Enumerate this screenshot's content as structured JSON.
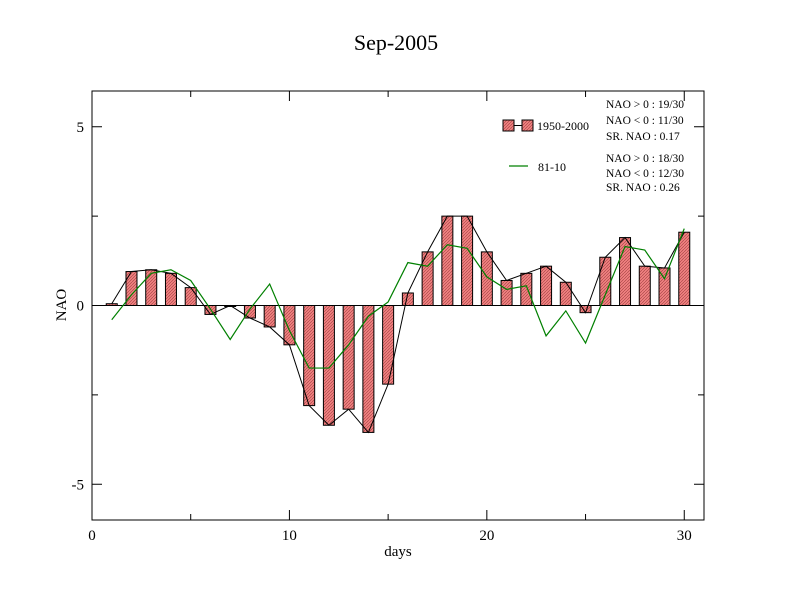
{
  "chart_data": {
    "type": "bar",
    "title": "Sep-2005",
    "xlabel": "days",
    "ylabel": "NAO",
    "xlim": [
      0,
      31
    ],
    "ylim": [
      -6,
      6
    ],
    "x_ticks": [
      0,
      10,
      20,
      30
    ],
    "y_ticks": [
      -5,
      0,
      5
    ],
    "x_tick_labels": [
      "0",
      "10",
      "20",
      "30"
    ],
    "y_tick_labels": [
      "-5",
      "0",
      "5"
    ],
    "grid": false,
    "legend_position": "top-right",
    "colors": {
      "bar_fill": "#f08080",
      "bar_stroke": "#000000",
      "bar_line": "#000000",
      "clim_line": "#008000"
    },
    "days": [
      1,
      2,
      3,
      4,
      5,
      6,
      7,
      8,
      9,
      10,
      11,
      12,
      13,
      14,
      15,
      16,
      17,
      18,
      19,
      20,
      21,
      22,
      23,
      24,
      25,
      26,
      27,
      28,
      29,
      30
    ],
    "series": [
      {
        "name": "1950-2000",
        "type": "bar",
        "values": [
          0.05,
          0.95,
          1.0,
          0.9,
          0.5,
          -0.25,
          0.0,
          -0.35,
          -0.6,
          -1.1,
          -2.8,
          -3.35,
          -2.9,
          -3.55,
          -2.2,
          0.35,
          1.5,
          2.5,
          2.5,
          1.5,
          0.7,
          0.9,
          1.1,
          0.65,
          -0.2,
          1.35,
          1.9,
          1.1,
          1.05,
          2.05
        ]
      },
      {
        "name": "81-10",
        "type": "line",
        "values": [
          -0.4,
          0.3,
          0.9,
          1.0,
          0.7,
          -0.1,
          -0.95,
          -0.1,
          0.6,
          -0.7,
          -1.75,
          -1.75,
          -1.1,
          -0.3,
          0.1,
          1.2,
          1.1,
          1.7,
          1.6,
          0.8,
          0.45,
          0.55,
          -0.85,
          -0.15,
          -1.05,
          0.3,
          1.65,
          1.55,
          0.75,
          2.15
        ]
      }
    ],
    "legend": [
      {
        "label": "1950-2000",
        "stats": [
          "NAO > 0 :  19/30",
          "NAO < 0 :  11/30",
          "SR. NAO :  0.17"
        ]
      },
      {
        "label": "81-10",
        "stats": [
          "NAO > 0 :  18/30",
          "NAO < 0 :  12/30",
          "SR. NAO :  0.26"
        ]
      }
    ]
  }
}
